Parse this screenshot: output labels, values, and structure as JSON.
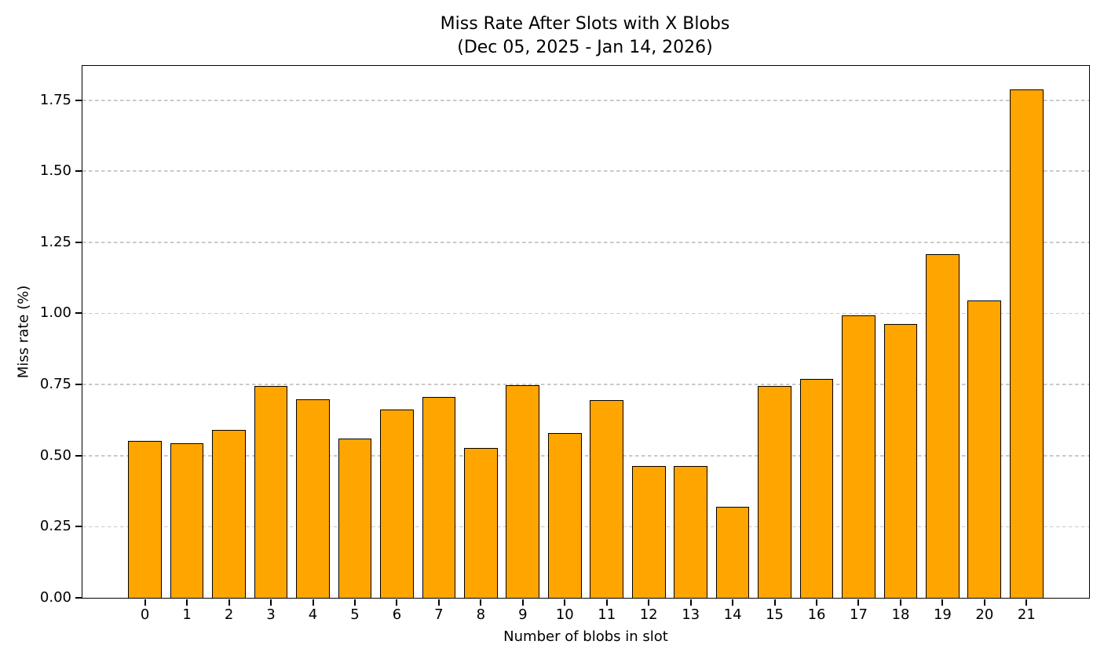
{
  "chart_data": {
    "type": "bar",
    "title": "Miss Rate After Slots with X Blobs",
    "subtitle": "(Dec 05, 2025 - Jan 14, 2026)",
    "xlabel": "Number of blobs in slot",
    "ylabel": "Miss rate (%)",
    "categories": [
      "0",
      "1",
      "2",
      "3",
      "4",
      "5",
      "6",
      "7",
      "8",
      "9",
      "10",
      "11",
      "12",
      "13",
      "14",
      "15",
      "16",
      "17",
      "18",
      "19",
      "20",
      "21"
    ],
    "values": [
      0.553,
      0.543,
      0.589,
      0.744,
      0.697,
      0.561,
      0.661,
      0.705,
      0.527,
      0.748,
      0.58,
      0.695,
      0.463,
      0.463,
      0.321,
      0.744,
      0.77,
      0.993,
      0.964,
      1.207,
      1.046,
      1.787
    ],
    "ylim": [
      0,
      1.87
    ],
    "yticks": [
      0.0,
      0.25,
      0.5,
      0.75,
      1.0,
      1.25,
      1.5,
      1.75
    ],
    "ytick_labels": [
      "0.00",
      "0.25",
      "0.50",
      "0.75",
      "1.00",
      "1.25",
      "1.50",
      "1.75"
    ],
    "grid": "horizontal-dashed",
    "legend": "none",
    "bar_color": "#FFA500",
    "bar_edge_color": "#000000",
    "grid_color": "#C9C9C9",
    "bar_width_fraction": 0.8
  }
}
